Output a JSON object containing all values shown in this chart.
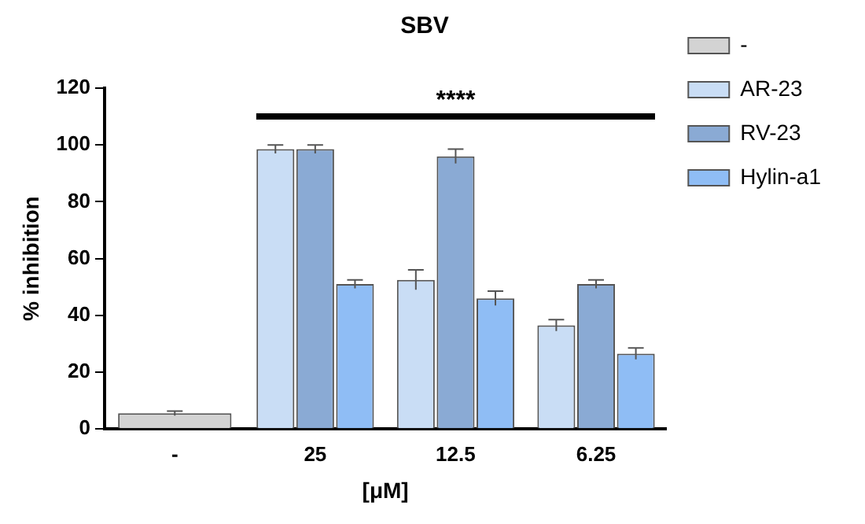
{
  "chart_data": {
    "type": "bar",
    "title": "SBV",
    "xlabel": "[μM]",
    "ylabel": "% inhibition",
    "categories": [
      "-",
      "25",
      "12.5",
      "6.25"
    ],
    "series": [
      {
        "name": "-",
        "color": "#d3d3d3",
        "values": [
          5.5,
          null,
          null,
          null
        ],
        "errors": [
          0.8,
          null,
          null,
          null
        ]
      },
      {
        "name": "AR-23",
        "color": "#c9ddf5",
        "values": [
          null,
          98.5,
          52.5,
          36.5
        ],
        "errors": [
          null,
          1.5,
          3.5,
          2
        ]
      },
      {
        "name": "RV-23",
        "color": "#8aaad4",
        "values": [
          null,
          98.5,
          96,
          51
        ],
        "errors": [
          null,
          1.5,
          2.5,
          1.5
        ]
      },
      {
        "name": "Hylin-a1",
        "color": "#8fbdf5",
        "values": [
          null,
          51,
          46,
          26.5
        ],
        "errors": [
          null,
          1.5,
          2.5,
          2
        ]
      }
    ],
    "ylim": [
      0,
      120
    ],
    "yticks": [
      0,
      20,
      40,
      60,
      80,
      100,
      120
    ],
    "grid": false,
    "legend": "right",
    "annotations": [
      "****"
    ]
  }
}
